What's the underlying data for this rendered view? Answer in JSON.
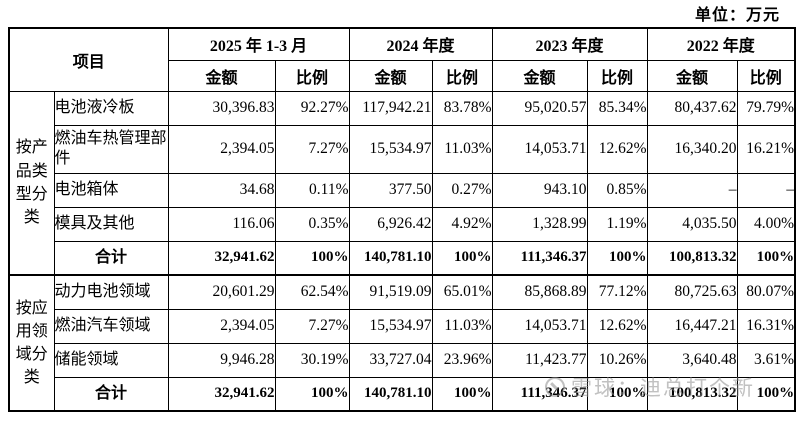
{
  "unit_label": "单位：万元",
  "watermark": {
    "text": "雪球：迪总打个新"
  },
  "table": {
    "item_header": "项目",
    "period_headers": [
      "2025 年 1-3 月",
      "2024 年度",
      "2023 年度",
      "2022 年度"
    ],
    "sub_headers": {
      "amount": "金额",
      "ratio": "比例"
    },
    "groups": [
      {
        "label": "按产\n品类\n型分\n类",
        "label_plain": "按产品类型分类",
        "rows": [
          {
            "name": "电池液冷板",
            "total": false,
            "cells": [
              "30,396.83",
              "92.27%",
              "117,942.21",
              "83.78%",
              "95,020.57",
              "85.34%",
              "80,437.62",
              "79.79%"
            ]
          },
          {
            "name": "燃油车热管理部件",
            "total": false,
            "tall": true,
            "cells": [
              "2,394.05",
              "7.27%",
              "15,534.97",
              "11.03%",
              "14,053.71",
              "12.62%",
              "16,340.20",
              "16.21%"
            ]
          },
          {
            "name": "电池箱体",
            "total": false,
            "cells": [
              "34.68",
              "0.11%",
              "377.50",
              "0.27%",
              "943.10",
              "0.85%",
              "–",
              "–"
            ]
          },
          {
            "name": "模具及其他",
            "total": false,
            "cells": [
              "116.06",
              "0.35%",
              "6,926.42",
              "4.92%",
              "1,328.99",
              "1.19%",
              "4,035.50",
              "4.00%"
            ]
          },
          {
            "name": "合计",
            "total": true,
            "cells": [
              "32,941.62",
              "100%",
              "140,781.10",
              "100%",
              "111,346.37",
              "100%",
              "100,813.32",
              "100%"
            ]
          }
        ]
      },
      {
        "label": "按应\n用领\n域分\n类",
        "label_plain": "按应用领域分类",
        "rows": [
          {
            "name": "动力电池领域",
            "total": false,
            "cells": [
              "20,601.29",
              "62.54%",
              "91,519.09",
              "65.01%",
              "85,868.89",
              "77.12%",
              "80,725.63",
              "80.07%"
            ]
          },
          {
            "name": "燃油汽车领域",
            "total": false,
            "cells": [
              "2,394.05",
              "7.27%",
              "15,534.97",
              "11.03%",
              "14,053.71",
              "12.62%",
              "16,447.21",
              "16.31%"
            ]
          },
          {
            "name": "储能领域",
            "total": false,
            "cells": [
              "9,946.28",
              "30.19%",
              "33,727.04",
              "23.96%",
              "11,423.77",
              "10.26%",
              "3,640.48",
              "3.61%"
            ]
          },
          {
            "name": "合计",
            "total": true,
            "cells": [
              "32,941.62",
              "100%",
              "140,781.10",
              "100%",
              "111,346.37",
              "100%",
              "100,813.32",
              "100%"
            ]
          }
        ]
      }
    ]
  }
}
